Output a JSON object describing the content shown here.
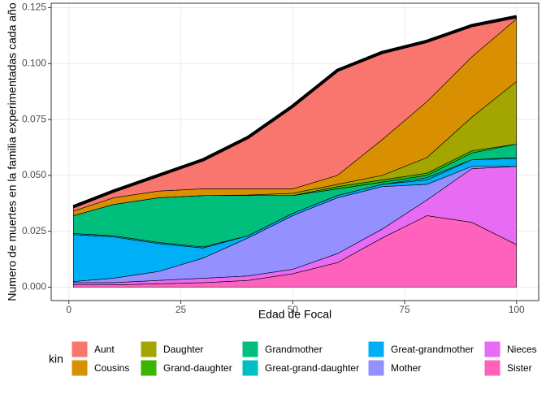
{
  "chart_data": {
    "type": "area",
    "stacked": true,
    "x_label": "Edad de Focal",
    "y_label": "Numero de muertes en la familia experimentadas cada año",
    "legend_title": "kin",
    "x": [
      1,
      10,
      20,
      30,
      40,
      50,
      60,
      70,
      80,
      90,
      100
    ],
    "xlim": [
      -3.95,
      104.95
    ],
    "xticks": [
      0,
      25,
      50,
      75,
      100
    ],
    "ylim": [
      -0.006,
      0.127
    ],
    "yticks": [
      {
        "value": 0,
        "label": "0.000"
      },
      {
        "value": 0.025,
        "label": "0.025"
      },
      {
        "value": 0.05,
        "label": "0.050"
      },
      {
        "value": 0.075,
        "label": "0.075"
      },
      {
        "value": 0.1,
        "label": "0.100"
      },
      {
        "value": 0.125,
        "label": "0.125"
      }
    ],
    "grid": true,
    "legend_position": "bottom",
    "series": [
      {
        "name": "Aunt",
        "color": "#F8766D",
        "values": [
          0.002,
          0.003,
          0.007,
          0.013,
          0.023,
          0.037,
          0.047,
          0.039,
          0.027,
          0.014,
          0.001
        ]
      },
      {
        "name": "Cousins",
        "color": "#D89000",
        "values": [
          0.002,
          0.003,
          0.003,
          0.003,
          0.0028,
          0.002,
          0.004,
          0.016,
          0.025,
          0.027,
          0.028
        ]
      },
      {
        "name": "Daughter",
        "color": "#A3A500",
        "values": [
          0,
          0,
          0,
          0,
          0.0002,
          0.001,
          0.001,
          0.002,
          0.007,
          0.015,
          0.028
        ]
      },
      {
        "name": "Grand-daughter",
        "color": "#39B600",
        "values": [
          0,
          0,
          0,
          0,
          0,
          0,
          0.001,
          0.001,
          0.001,
          0.001,
          0
        ]
      },
      {
        "name": "Grandmother",
        "color": "#00BF7D",
        "values": [
          0.008,
          0.014,
          0.02,
          0.023,
          0.018,
          0.008,
          0.003,
          0.001,
          0.001,
          0.003,
          0.006
        ]
      },
      {
        "name": "Great-grand-daughter",
        "color": "#00BFC4",
        "values": [
          0.0005,
          0.0005,
          0.0005,
          0.0005,
          0,
          0,
          0,
          0,
          0.001,
          0,
          0.0005
        ]
      },
      {
        "name": "Great-grandmother",
        "color": "#00B0F6",
        "values": [
          0.021,
          0.0185,
          0.0125,
          0.0045,
          0.001,
          0.001,
          0.001,
          0.001,
          0.002,
          0.003,
          0.0035
        ]
      },
      {
        "name": "Mother",
        "color": "#9590FF",
        "values": [
          0.0005,
          0.002,
          0.004,
          0.009,
          0.017,
          0.024,
          0.025,
          0.019,
          0.007,
          0.001,
          0
        ]
      },
      {
        "name": "Nieces",
        "color": "#E76BF3",
        "values": [
          0.001,
          0.001,
          0.0015,
          0.002,
          0.002,
          0.002,
          0.004,
          0.004,
          0.007,
          0.024,
          0.035
        ]
      },
      {
        "name": "Sister",
        "color": "#FF62BC",
        "values": [
          0.001,
          0.001,
          0.0015,
          0.002,
          0.003,
          0.006,
          0.011,
          0.022,
          0.032,
          0.029,
          0.019
        ]
      }
    ]
  }
}
